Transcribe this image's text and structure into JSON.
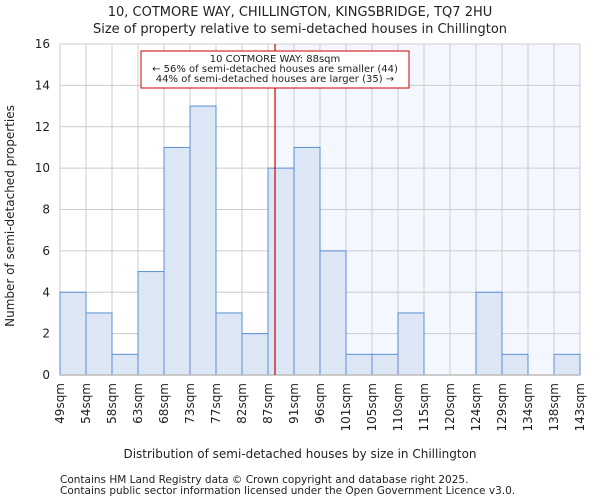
{
  "chart_data": {
    "type": "bar",
    "title": "10, COTMORE WAY, CHILLINGTON, KINGSBRIDGE, TQ7 2HU",
    "subtitle": "Size of property relative to semi-detached houses in Chillington",
    "xlabel": "Distribution of semi-detached houses by size in Chillington",
    "ylabel": "Number of semi-detached properties",
    "bin_edges": [
      "49sqm",
      "54sqm",
      "58sqm",
      "63sqm",
      "68sqm",
      "73sqm",
      "77sqm",
      "82sqm",
      "87sqm",
      "91sqm",
      "96sqm",
      "101sqm",
      "105sqm",
      "110sqm",
      "115sqm",
      "120sqm",
      "124sqm",
      "129sqm",
      "134sqm",
      "138sqm",
      "143sqm"
    ],
    "values": [
      4,
      3,
      1,
      5,
      11,
      13,
      3,
      2,
      10,
      11,
      6,
      1,
      1,
      3,
      0,
      0,
      4,
      1,
      0,
      1
    ],
    "ylim": [
      0,
      16
    ],
    "yticks": [
      0,
      2,
      4,
      6,
      8,
      10,
      12,
      14,
      16
    ],
    "grid": true,
    "marker": {
      "value_sqm": 88,
      "bin_position": 8.27,
      "color": "#cc0000"
    },
    "annotation": {
      "line1": "10 COTMORE WAY: 88sqm",
      "line2": "← 56% of semi-detached houses are smaller (44)",
      "line3": "44% of semi-detached houses are larger (35) →"
    },
    "colors": {
      "bar_fill": "#dce6f4",
      "bar_edge": "#5b8fd6",
      "highlight_bg": "#f4f7fe",
      "grid": "#cccccc"
    }
  },
  "footer": {
    "line1": "Contains HM Land Registry data © Crown copyright and database right 2025.",
    "line2": "Contains public sector information licensed under the Open Government Licence v3.0."
  }
}
